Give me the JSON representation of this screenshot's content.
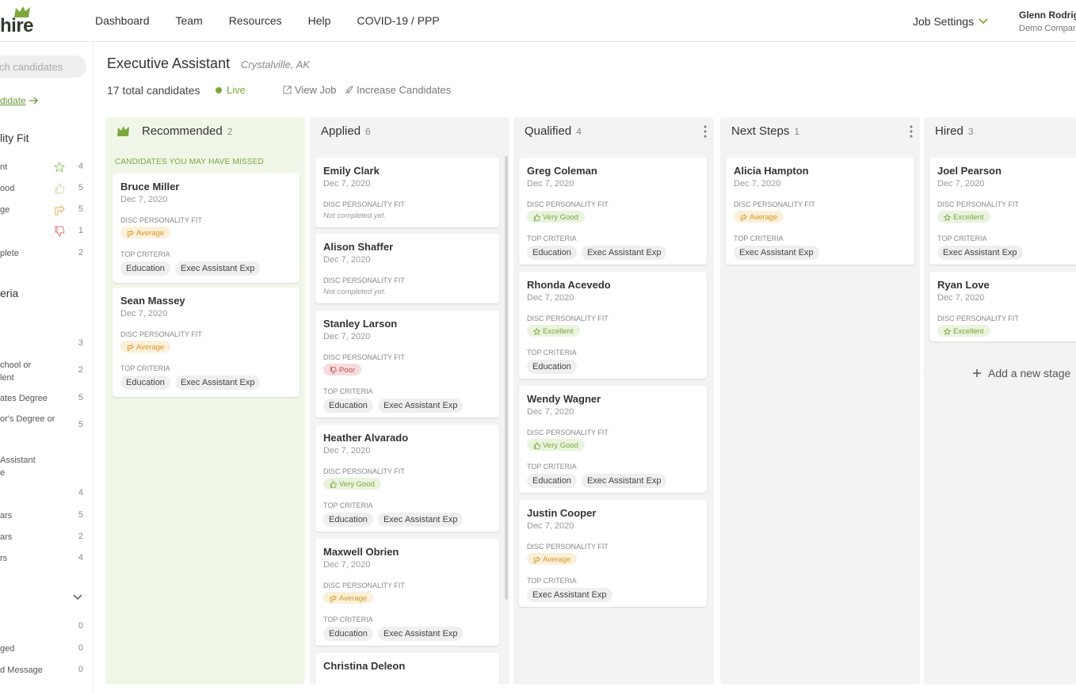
{
  "logo": {
    "text": "hire"
  },
  "nav": {
    "items": [
      "Dashboard",
      "Team",
      "Resources",
      "Help",
      "COVID-19 / PPP"
    ]
  },
  "job_settings": {
    "label": "Job Settings"
  },
  "user": {
    "name": "Glenn Rodrig",
    "company": "Demo Compar"
  },
  "sidebar": {
    "search_placeholder": "ch candidates",
    "add_candidate": "didate",
    "personality_heading": "lity Fit",
    "personality_rows": [
      {
        "label": "nt",
        "count": "4",
        "icon": "star-icon"
      },
      {
        "label": "ood",
        "count": "5",
        "icon": "thumbs-up-icon"
      },
      {
        "label": "ge",
        "count": "5",
        "icon": "hand-point-icon"
      },
      {
        "label": "",
        "count": "1",
        "icon": "thumbs-down-icon"
      },
      {
        "label": "plete",
        "count": "2",
        "icon": ""
      }
    ],
    "criteria_heading": "eria",
    "criteria_rows": [
      {
        "label": "",
        "count": "3"
      },
      {
        "label": "chool or\nlent",
        "count": "2"
      },
      {
        "label": "ates Degree",
        "count": "5"
      },
      {
        "label": "or's Degree or",
        "count": "5"
      },
      {
        "label": "Assistant\ne",
        "count": ""
      },
      {
        "label": "",
        "count": "4"
      },
      {
        "label": "ars",
        "count": "5"
      },
      {
        "label": "ars",
        "count": "2"
      },
      {
        "label": "rs",
        "count": "4"
      }
    ],
    "message_rows": [
      {
        "label": "",
        "count": "0"
      },
      {
        "label": "ged",
        "count": "0"
      },
      {
        "label": "d Message",
        "count": "0"
      }
    ]
  },
  "header": {
    "title": "Executive Assistant",
    "location": "Crystalville, AK",
    "total": "17 total candidates",
    "status": "Live",
    "view_job": "View Job",
    "increase": "Increase Candidates"
  },
  "labels": {
    "disc": "DISC PERSONALITY FIT",
    "top": "TOP CRITERIA",
    "not_completed": "Not completed yet.",
    "missed": "CANDIDATES YOU MAY HAVE MISSED",
    "add_stage": "Add a new stage"
  },
  "columns": [
    {
      "title": "Recommended",
      "count": "2",
      "cards": [
        {
          "name": "Bruce Miller",
          "date": "Dec 7, 2020",
          "fit": "Average",
          "fit_type": "avg",
          "criteria": [
            "Education",
            "Exec Assistant Exp"
          ]
        },
        {
          "name": "Sean Massey",
          "date": "Dec 7, 2020",
          "fit": "Average",
          "fit_type": "avg",
          "criteria": [
            "Education",
            "Exec Assistant Exp"
          ]
        }
      ]
    },
    {
      "title": "Applied",
      "count": "6",
      "cards": [
        {
          "name": "Emily Clark",
          "date": "Dec 7, 2020",
          "fit": "",
          "fit_type": "none",
          "criteria": []
        },
        {
          "name": "Alison Shaffer",
          "date": "Dec 7, 2020",
          "fit": "",
          "fit_type": "none",
          "criteria": []
        },
        {
          "name": "Stanley Larson",
          "date": "Dec 7, 2020",
          "fit": "Poor",
          "fit_type": "poor",
          "criteria": [
            "Education",
            "Exec Assistant Exp"
          ]
        },
        {
          "name": "Heather Alvarado",
          "date": "Dec 7, 2020",
          "fit": "Very Good",
          "fit_type": "vg",
          "criteria": [
            "Education",
            "Exec Assistant Exp"
          ]
        },
        {
          "name": "Maxwell Obrien",
          "date": "Dec 7, 2020",
          "fit": "Average",
          "fit_type": "avg",
          "criteria": [
            "Education",
            "Exec Assistant Exp"
          ]
        },
        {
          "name": "Christina Deleon",
          "date": "",
          "fit": "",
          "fit_type": "cut",
          "criteria": []
        }
      ]
    },
    {
      "title": "Qualified",
      "count": "4",
      "cards": [
        {
          "name": "Greg Coleman",
          "date": "Dec 7, 2020",
          "fit": "Very Good",
          "fit_type": "vg",
          "criteria": [
            "Education",
            "Exec Assistant Exp"
          ]
        },
        {
          "name": "Rhonda Acevedo",
          "date": "Dec 7, 2020",
          "fit": "Excellent",
          "fit_type": "exc",
          "criteria": [
            "Education"
          ]
        },
        {
          "name": "Wendy Wagner",
          "date": "Dec 7, 2020",
          "fit": "Very Good",
          "fit_type": "vg",
          "criteria": [
            "Education",
            "Exec Assistant Exp"
          ]
        },
        {
          "name": "Justin Cooper",
          "date": "Dec 7, 2020",
          "fit": "Average",
          "fit_type": "avg",
          "criteria": [
            "Exec Assistant Exp"
          ]
        }
      ]
    },
    {
      "title": "Next Steps",
      "count": "1",
      "cards": [
        {
          "name": "Alicia Hampton",
          "date": "Dec 7, 2020",
          "fit": "Average",
          "fit_type": "avg",
          "criteria": [
            "Exec Assistant Exp"
          ]
        }
      ]
    },
    {
      "title": "Hired",
      "count": "3",
      "cards": [
        {
          "name": "Joel Pearson",
          "date": "Dec 7, 2020",
          "fit": "Excellent",
          "fit_type": "exc",
          "criteria": [
            "Exec Assistant Exp"
          ]
        },
        {
          "name": "Ryan Love",
          "date": "Dec 7, 2020",
          "fit": "Excellent",
          "fit_type": "exc",
          "criteria": []
        }
      ]
    }
  ],
  "colors": {
    "brand_green": "#7aa83c",
    "average": "#d7962a",
    "poor": "#c9504c"
  }
}
